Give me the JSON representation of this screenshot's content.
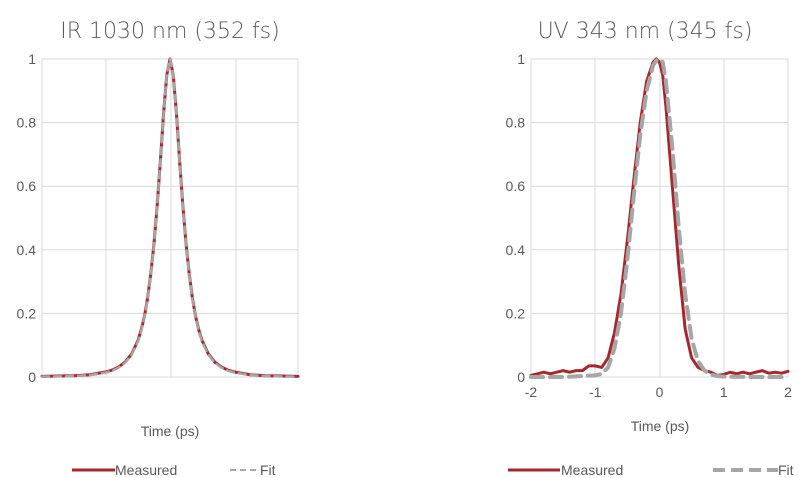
{
  "colors": {
    "measured": "#a8262c",
    "fit": "#a6a6a6",
    "grid": "#d9d9d9",
    "text": "#595959"
  },
  "chart_data": [
    {
      "type": "line",
      "title": "IR 1030 nm (352 fs)",
      "xlabel": "Time (ps)",
      "ylabel": "",
      "xlim": [
        -2,
        2
      ],
      "ylim": [
        0,
        1
      ],
      "yticks": [
        "0",
        "0.2",
        "0.4",
        "0.6",
        "0.8",
        "1"
      ],
      "xticks": [],
      "grid": true,
      "legend_position": "bottom",
      "series": [
        {
          "name": "Measured",
          "style": "solid",
          "x": [
            -2,
            -1.75,
            -1.5,
            -1.25,
            -1.0,
            -0.9,
            -0.8,
            -0.7,
            -0.6,
            -0.5,
            -0.45,
            -0.4,
            -0.35,
            -0.3,
            -0.25,
            -0.2,
            -0.15,
            -0.1,
            -0.05,
            0,
            0.05,
            0.1,
            0.15,
            0.2,
            0.25,
            0.3,
            0.35,
            0.4,
            0.45,
            0.5,
            0.6,
            0.7,
            0.8,
            0.9,
            1.0,
            1.25,
            1.5,
            1.75,
            2
          ],
          "y": [
            0.002,
            0.003,
            0.004,
            0.007,
            0.016,
            0.022,
            0.032,
            0.047,
            0.072,
            0.115,
            0.148,
            0.19,
            0.248,
            0.325,
            0.42,
            0.54,
            0.68,
            0.83,
            0.95,
            1.0,
            0.95,
            0.83,
            0.68,
            0.54,
            0.42,
            0.325,
            0.248,
            0.19,
            0.148,
            0.115,
            0.072,
            0.047,
            0.032,
            0.022,
            0.016,
            0.007,
            0.004,
            0.003,
            0.002
          ]
        },
        {
          "name": "Fit",
          "style": "dashed",
          "x": [
            -2,
            -1.75,
            -1.5,
            -1.25,
            -1.0,
            -0.9,
            -0.8,
            -0.7,
            -0.6,
            -0.5,
            -0.45,
            -0.4,
            -0.35,
            -0.3,
            -0.25,
            -0.2,
            -0.15,
            -0.1,
            -0.05,
            0,
            0.05,
            0.1,
            0.15,
            0.2,
            0.25,
            0.3,
            0.35,
            0.4,
            0.45,
            0.5,
            0.6,
            0.7,
            0.8,
            0.9,
            1.0,
            1.25,
            1.5,
            1.75,
            2
          ],
          "y": [
            0.001,
            0.002,
            0.003,
            0.006,
            0.014,
            0.02,
            0.03,
            0.045,
            0.07,
            0.112,
            0.145,
            0.188,
            0.245,
            0.322,
            0.418,
            0.538,
            0.678,
            0.828,
            0.95,
            1.0,
            0.95,
            0.828,
            0.678,
            0.538,
            0.418,
            0.322,
            0.245,
            0.188,
            0.145,
            0.112,
            0.07,
            0.045,
            0.03,
            0.02,
            0.014,
            0.006,
            0.003,
            0.002,
            0.001
          ]
        }
      ]
    },
    {
      "type": "line",
      "title": "UV 343 nm (345 fs)",
      "xlabel": "Time (ps)",
      "ylabel": "",
      "xlim": [
        -2,
        2
      ],
      "ylim": [
        0,
        1
      ],
      "yticks": [
        "0",
        "0.2",
        "0.4",
        "0.6",
        "0.8",
        "1"
      ],
      "xticks": [
        "-2",
        "-1",
        "0",
        "1",
        "2"
      ],
      "grid": true,
      "legend_position": "bottom",
      "series": [
        {
          "name": "Measured",
          "style": "solid",
          "x": [
            -2,
            -1.9,
            -1.8,
            -1.7,
            -1.6,
            -1.5,
            -1.4,
            -1.3,
            -1.2,
            -1.1,
            -1.0,
            -0.9,
            -0.8,
            -0.7,
            -0.6,
            -0.5,
            -0.4,
            -0.3,
            -0.2,
            -0.1,
            -0.05,
            0,
            0.05,
            0.1,
            0.2,
            0.3,
            0.4,
            0.5,
            0.6,
            0.7,
            0.8,
            0.9,
            1.0,
            1.1,
            1.2,
            1.3,
            1.4,
            1.5,
            1.6,
            1.7,
            1.8,
            1.9,
            2
          ],
          "y": [
            0.005,
            0.01,
            0.015,
            0.01,
            0.015,
            0.02,
            0.015,
            0.02,
            0.02,
            0.035,
            0.035,
            0.03,
            0.06,
            0.14,
            0.26,
            0.43,
            0.62,
            0.8,
            0.93,
            0.99,
            1.0,
            0.99,
            0.95,
            0.85,
            0.6,
            0.35,
            0.15,
            0.06,
            0.03,
            0.02,
            0.015,
            0.005,
            0.008,
            0.015,
            0.01,
            0.015,
            0.01,
            0.015,
            0.02,
            0.012,
            0.015,
            0.012,
            0.018
          ]
        },
        {
          "name": "Fit",
          "style": "dashed",
          "x": [
            -2,
            -1.5,
            -1.0,
            -0.9,
            -0.8,
            -0.7,
            -0.6,
            -0.5,
            -0.4,
            -0.3,
            -0.2,
            -0.1,
            -0.05,
            0,
            0.05,
            0.1,
            0.2,
            0.3,
            0.4,
            0.5,
            0.6,
            0.7,
            0.8,
            0.9,
            1.0,
            1.5,
            2
          ],
          "y": [
            0.0,
            0.0,
            0.005,
            0.01,
            0.03,
            0.09,
            0.2,
            0.37,
            0.57,
            0.76,
            0.9,
            0.98,
            0.995,
            1.0,
            0.99,
            0.93,
            0.72,
            0.47,
            0.26,
            0.12,
            0.05,
            0.02,
            0.008,
            0.003,
            0.001,
            0.0,
            0.0
          ]
        }
      ]
    }
  ]
}
